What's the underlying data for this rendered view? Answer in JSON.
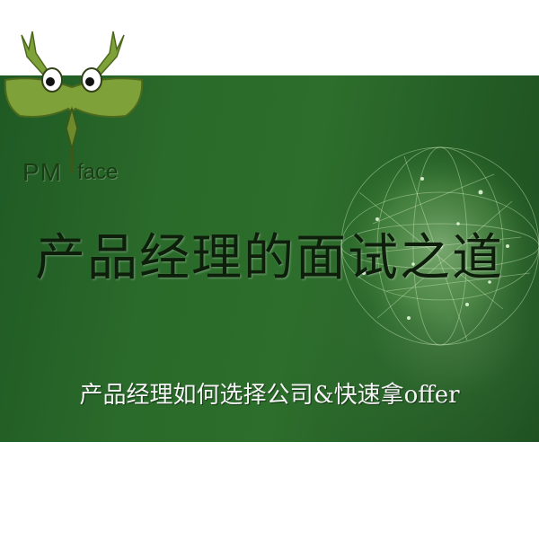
{
  "logo": {
    "pm": "PM",
    "face": "face"
  },
  "banner": {
    "title": "产品经理的面试之道",
    "subtitle": "产品经理如何选择公司&快速拿offer"
  },
  "colors": {
    "banner_green": "#2a6a2a",
    "logo_green": "#7fa13a",
    "title_text": "#0d1f0b",
    "subtitle_text": "#f4f4f4"
  }
}
